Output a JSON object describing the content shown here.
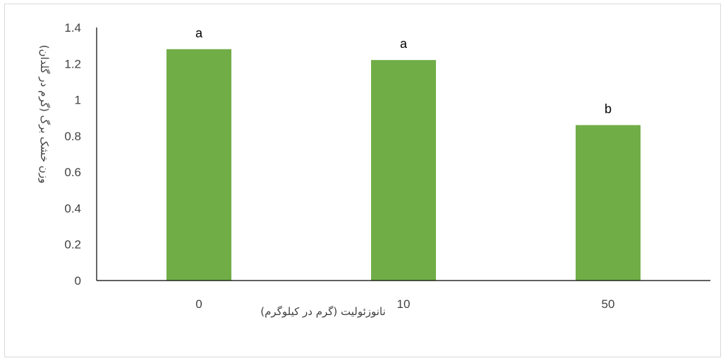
{
  "chart_data": {
    "type": "bar",
    "categories": [
      "0",
      "10",
      "50"
    ],
    "values": [
      1.28,
      1.22,
      0.86
    ],
    "data_labels": [
      "a",
      "a",
      "b"
    ],
    "title": "",
    "xlabel": "نانوزئولیت (گرم در کیلوگرم)",
    "ylabel": "وزن خشک برگ (گرم در گلدان)",
    "ylim": [
      0,
      1.4
    ],
    "yticks": [
      "0",
      "0.2",
      "0.4",
      "0.6",
      "0.8",
      "1",
      "1.2",
      "1.4"
    ],
    "grid": false,
    "legend": "none",
    "bar_color": "#70ad47"
  }
}
